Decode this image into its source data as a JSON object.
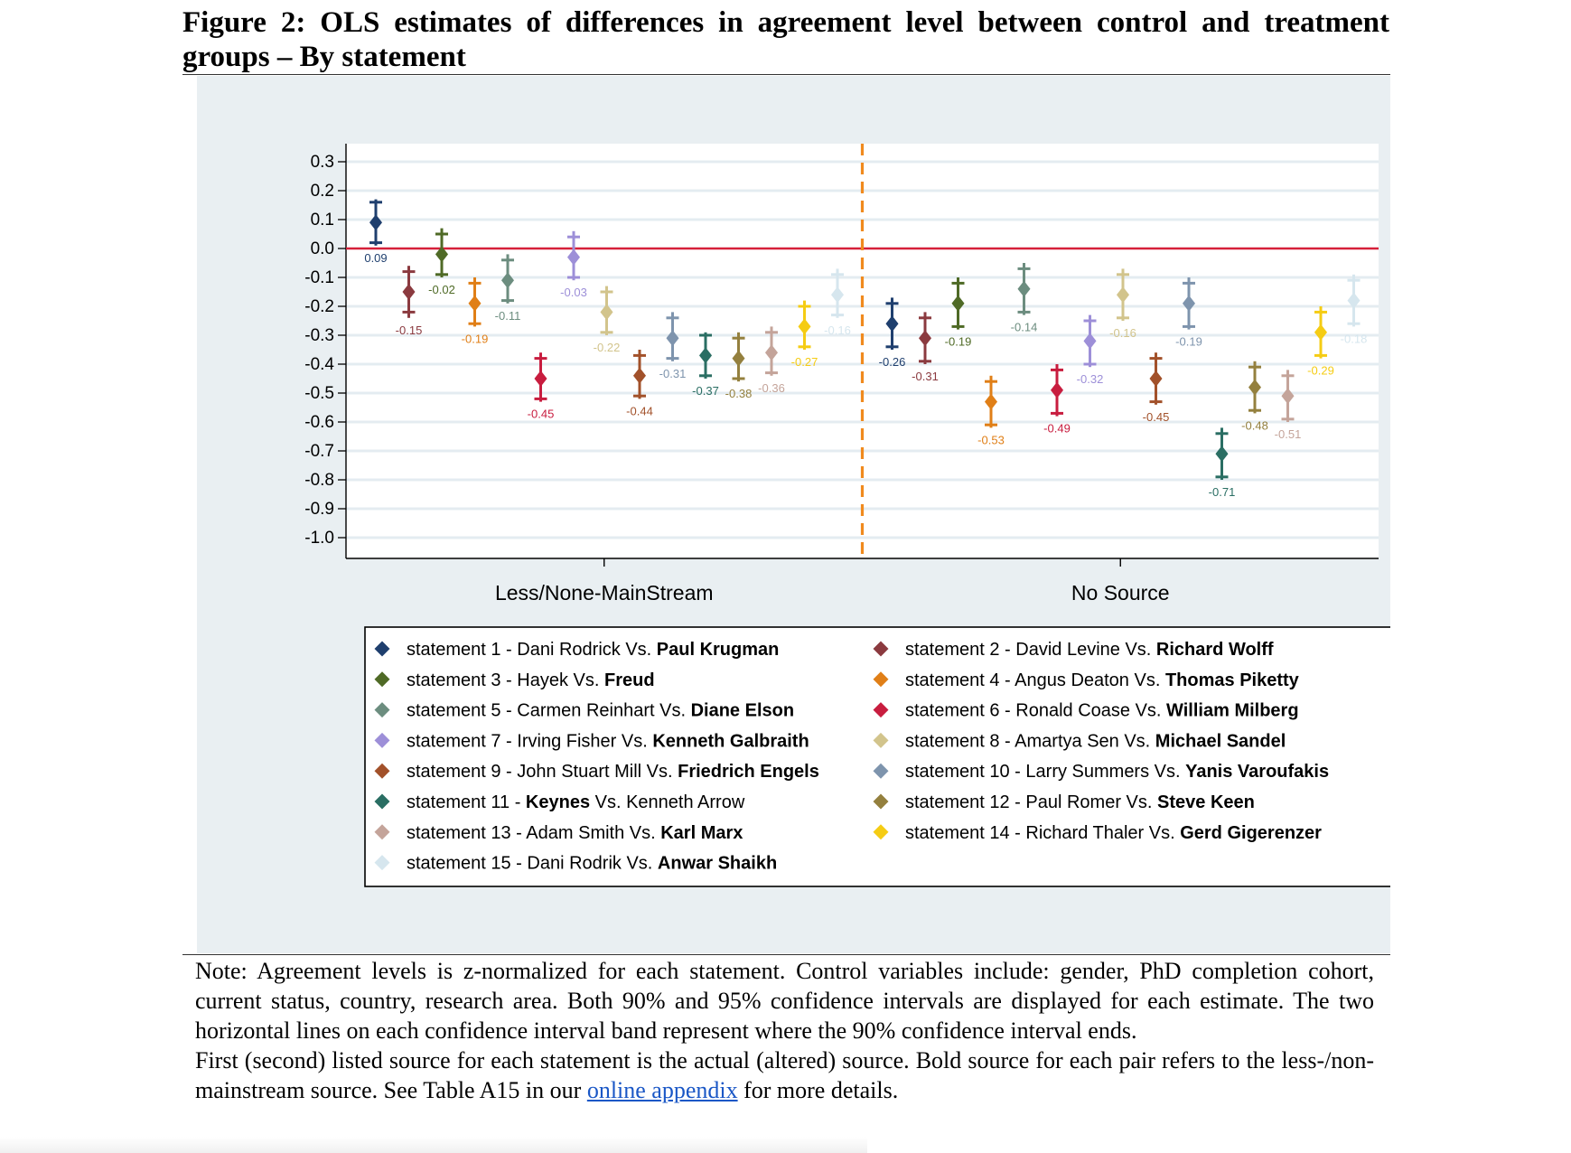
{
  "figure": {
    "title": "Figure 2: OLS estimates of differences in agreement level between control and treatment groups – By statement"
  },
  "note": {
    "paragraph1": "Note: Agreement levels is z-normalized for each statement. Control variables include: gender, PhD completion cohort, current status, country, research area. Both 90% and 95% confidence intervals are displayed for each estimate. The two horizontal lines on each confidence interval band represent where the 90% confidence interval ends.",
    "paragraph2_before": "First (second) listed source for each statement is the actual (altered) source. Bold source for each pair refers to the less-/non-mainstream source. See Table A15 in our ",
    "link_text": "online appendix",
    "paragraph2_after": " for more details."
  },
  "chart_data": {
    "type": "scatter",
    "description_type": "coefficient plot with confidence intervals",
    "ylim": [
      -1.0,
      0.3
    ],
    "yticks": [
      "0.3",
      "0.2",
      "0.1",
      "0.0",
      "-0.1",
      "-0.2",
      "-0.3",
      "-0.4",
      "-0.5",
      "-0.6",
      "-0.7",
      "-0.8",
      "-0.9",
      "-1.0"
    ],
    "grid": true,
    "reference_line": {
      "y": 0,
      "color": "#d6203a"
    },
    "divider_color": "#f08a1e",
    "groups": [
      "Less/None-MainStream",
      "No Source"
    ],
    "statements": [
      {
        "label": "statement 1",
        "prefix": " - ",
        "plain": "Dani Rodrick Vs. ",
        "bold": "Paul Krugman",
        "bold_first": false,
        "color": "#1f3f6e"
      },
      {
        "label": "statement 2",
        "prefix": " - ",
        "plain": "David Levine Vs. ",
        "bold": "Richard Wolff",
        "bold_first": false,
        "color": "#8b3a3f"
      },
      {
        "label": "statement 3",
        "prefix": " - ",
        "plain": "Hayek Vs. ",
        "bold": "Freud",
        "bold_first": false,
        "color": "#4f6a26"
      },
      {
        "label": "statement 4",
        "prefix": " - ",
        "plain": "Angus Deaton Vs. ",
        "bold": "Thomas Piketty",
        "bold_first": false,
        "color": "#e07f17"
      },
      {
        "label": "statement 5",
        "prefix": " - ",
        "plain": "Carmen Reinhart Vs. ",
        "bold": "Diane Elson",
        "bold_first": false,
        "color": "#6c8d7f"
      },
      {
        "label": "statement 6",
        "prefix": " - ",
        "plain": "Ronald Coase Vs. ",
        "bold": "William Milberg",
        "bold_first": false,
        "color": "#c81d3f"
      },
      {
        "label": "statement 7",
        "prefix": " - ",
        "plain": "Irving Fisher Vs. ",
        "bold": "Kenneth Galbraith",
        "bold_first": false,
        "color": "#9d8fd8"
      },
      {
        "label": "statement 8",
        "prefix": " - ",
        "plain": "Amartya Sen Vs. ",
        "bold": "Michael Sandel",
        "bold_first": false,
        "color": "#d2c48c"
      },
      {
        "label": "statement 9",
        "prefix": " - ",
        "plain": "John Stuart Mill Vs. ",
        "bold": "Friedrich Engels",
        "bold_first": false,
        "color": "#a2512a"
      },
      {
        "label": "statement 10",
        "prefix": " - ",
        "plain": "Larry Summers Vs. ",
        "bold": "Yanis Varoufakis",
        "bold_first": false,
        "color": "#7e94ad"
      },
      {
        "label": "statement 11",
        "prefix": " - ",
        "plain": " Vs. Kenneth Arrow",
        "bold": "Keynes",
        "bold_first": true,
        "color": "#2a6e63"
      },
      {
        "label": "statement 12",
        "prefix": " - ",
        "plain": "Paul Romer Vs. ",
        "bold": "Steve Keen",
        "bold_first": false,
        "color": "#94803e"
      },
      {
        "label": "statement 13",
        "prefix": " - ",
        "plain": "Adam Smith Vs. ",
        "bold": "Karl Marx",
        "bold_first": false,
        "color": "#c4a49a"
      },
      {
        "label": "statement 14",
        "prefix": " - ",
        "plain": "Richard Thaler Vs. ",
        "bold": "Gerd Gigerenzer",
        "bold_first": false,
        "color": "#f5cc14"
      },
      {
        "label": "statement 15",
        "prefix": " - ",
        "plain": "Dani Rodrik Vs. ",
        "bold": "Anwar Shaikh",
        "bold_first": false,
        "color": "#d6e6ee"
      }
    ],
    "series": [
      {
        "name": "Less/None-MainStream",
        "estimates": [
          {
            "statement": 1,
            "value": 0.09,
            "label": "0.09",
            "ci95": [
              0.01,
              0.17
            ],
            "ci90": [
              0.02,
              0.16
            ]
          },
          {
            "statement": 2,
            "value": -0.15,
            "label": "-0.15",
            "ci95": [
              -0.24,
              -0.06
            ],
            "ci90": [
              -0.22,
              -0.08
            ]
          },
          {
            "statement": 3,
            "value": -0.02,
            "label": "-0.02",
            "ci95": [
              -0.1,
              0.07
            ],
            "ci90": [
              -0.09,
              0.05
            ]
          },
          {
            "statement": 4,
            "value": -0.19,
            "label": "-0.19",
            "ci95": [
              -0.27,
              -0.1
            ],
            "ci90": [
              -0.26,
              -0.12
            ]
          },
          {
            "statement": 5,
            "value": -0.11,
            "label": "-0.11",
            "ci95": [
              -0.19,
              -0.02
            ],
            "ci90": [
              -0.18,
              -0.04
            ]
          },
          {
            "statement": 6,
            "value": -0.45,
            "label": "-0.45",
            "ci95": [
              -0.53,
              -0.36
            ],
            "ci90": [
              -0.52,
              -0.38
            ]
          },
          {
            "statement": 7,
            "value": -0.03,
            "label": "-0.03",
            "ci95": [
              -0.11,
              0.06
            ],
            "ci90": [
              -0.1,
              0.04
            ]
          },
          {
            "statement": 8,
            "value": -0.22,
            "label": "-0.22",
            "ci95": [
              -0.3,
              -0.13
            ],
            "ci90": [
              -0.29,
              -0.15
            ]
          },
          {
            "statement": 9,
            "value": -0.44,
            "label": "-0.44",
            "ci95": [
              -0.52,
              -0.35
            ],
            "ci90": [
              -0.51,
              -0.37
            ]
          },
          {
            "statement": 10,
            "value": -0.31,
            "label": "-0.31",
            "ci95": [
              -0.39,
              -0.22
            ],
            "ci90": [
              -0.38,
              -0.24
            ]
          },
          {
            "statement": 11,
            "value": -0.37,
            "label": "-0.37",
            "ci95": [
              -0.45,
              -0.29
            ],
            "ci90": [
              -0.44,
              -0.3
            ]
          },
          {
            "statement": 12,
            "value": -0.38,
            "label": "-0.38",
            "ci95": [
              -0.46,
              -0.29
            ],
            "ci90": [
              -0.45,
              -0.31
            ]
          },
          {
            "statement": 13,
            "value": -0.36,
            "label": "-0.36",
            "ci95": [
              -0.44,
              -0.27
            ],
            "ci90": [
              -0.43,
              -0.29
            ]
          },
          {
            "statement": 14,
            "value": -0.27,
            "label": "-0.27",
            "ci95": [
              -0.35,
              -0.18
            ],
            "ci90": [
              -0.34,
              -0.2
            ]
          },
          {
            "statement": 15,
            "value": -0.16,
            "label": "-0.16",
            "ci95": [
              -0.24,
              -0.07
            ],
            "ci90": [
              -0.23,
              -0.09
            ]
          }
        ]
      },
      {
        "name": "No Source",
        "estimates": [
          {
            "statement": 1,
            "value": -0.26,
            "label": "-0.26",
            "ci95": [
              -0.35,
              -0.17
            ],
            "ci90": [
              -0.34,
              -0.19
            ]
          },
          {
            "statement": 2,
            "value": -0.31,
            "label": "-0.31",
            "ci95": [
              -0.4,
              -0.22
            ],
            "ci90": [
              -0.39,
              -0.24
            ]
          },
          {
            "statement": 3,
            "value": -0.19,
            "label": "-0.19",
            "ci95": [
              -0.28,
              -0.1
            ],
            "ci90": [
              -0.27,
              -0.12
            ]
          },
          {
            "statement": 4,
            "value": -0.53,
            "label": "-0.53",
            "ci95": [
              -0.62,
              -0.44
            ],
            "ci90": [
              -0.61,
              -0.46
            ]
          },
          {
            "statement": 5,
            "value": -0.14,
            "label": "-0.14",
            "ci95": [
              -0.23,
              -0.05
            ],
            "ci90": [
              -0.22,
              -0.07
            ]
          },
          {
            "statement": 6,
            "value": -0.49,
            "label": "-0.49",
            "ci95": [
              -0.58,
              -0.4
            ],
            "ci90": [
              -0.57,
              -0.42
            ]
          },
          {
            "statement": 7,
            "value": -0.32,
            "label": "-0.32",
            "ci95": [
              -0.41,
              -0.23
            ],
            "ci90": [
              -0.4,
              -0.25
            ]
          },
          {
            "statement": 8,
            "value": -0.16,
            "label": "-0.16",
            "ci95": [
              -0.25,
              -0.07
            ],
            "ci90": [
              -0.24,
              -0.09
            ]
          },
          {
            "statement": 9,
            "value": -0.45,
            "label": "-0.45",
            "ci95": [
              -0.54,
              -0.36
            ],
            "ci90": [
              -0.53,
              -0.38
            ]
          },
          {
            "statement": 10,
            "value": -0.19,
            "label": "-0.19",
            "ci95": [
              -0.28,
              -0.1
            ],
            "ci90": [
              -0.27,
              -0.12
            ]
          },
          {
            "statement": 11,
            "value": -0.71,
            "label": "-0.71",
            "ci95": [
              -0.8,
              -0.62
            ],
            "ci90": [
              -0.79,
              -0.64
            ]
          },
          {
            "statement": 12,
            "value": -0.48,
            "label": "-0.48",
            "ci95": [
              -0.57,
              -0.39
            ],
            "ci90": [
              -0.56,
              -0.41
            ]
          },
          {
            "statement": 13,
            "value": -0.51,
            "label": "-0.51",
            "ci95": [
              -0.6,
              -0.42
            ],
            "ci90": [
              -0.59,
              -0.44
            ]
          },
          {
            "statement": 14,
            "value": -0.29,
            "label": "-0.29",
            "ci95": [
              -0.38,
              -0.2
            ],
            "ci90": [
              -0.37,
              -0.22
            ]
          },
          {
            "statement": 15,
            "value": -0.18,
            "label": "-0.18",
            "ci95": [
              -0.27,
              -0.09
            ],
            "ci90": [
              -0.26,
              -0.11
            ]
          }
        ]
      }
    ]
  }
}
